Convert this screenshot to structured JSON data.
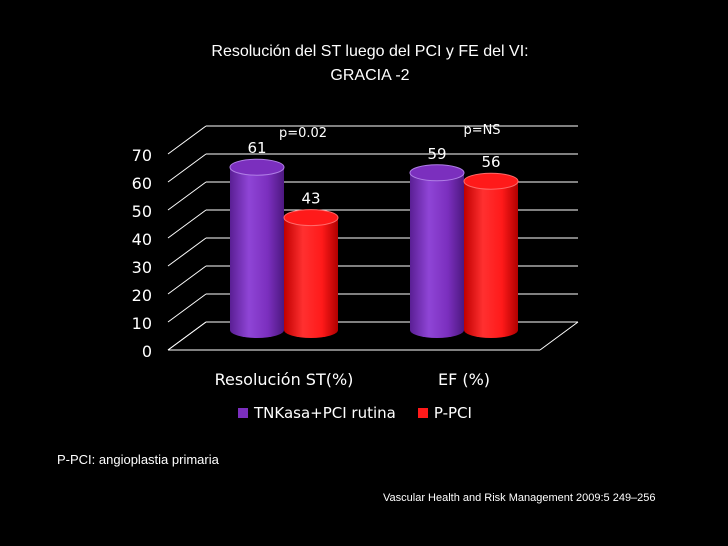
{
  "slide": {
    "title_line1": "Resolución del ST luego del PCI y FE del VI:",
    "title_line2": "GRACIA -2",
    "footnote": "P-PCI: angioplastia primaria",
    "source": "Vascular Health and Risk Management 2009:5 249–256"
  },
  "chart_data": {
    "type": "bar",
    "title": "Resolución del ST luego del PCI y FE del VI: GRACIA -2",
    "categories": [
      "Resolución ST(%)",
      "EF (%)"
    ],
    "series": [
      {
        "name": "TNKasa+PCI rutina",
        "values": [
          61,
          59
        ],
        "color": "#7B2FBE"
      },
      {
        "name": "P-PCI",
        "values": [
          43,
          56
        ],
        "color": "#FF1A1A"
      }
    ],
    "annotations": [
      "p=0.02",
      "p=NS"
    ],
    "yticks": [
      0,
      10,
      20,
      30,
      40,
      50,
      60,
      70
    ],
    "ylim": [
      0,
      70
    ],
    "grid": true,
    "legend": "bottom"
  }
}
